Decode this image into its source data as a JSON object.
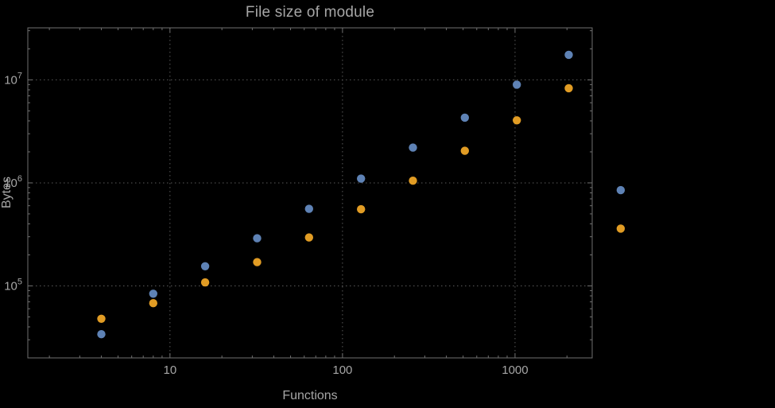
{
  "page": {
    "background": "#000000"
  },
  "chart_data": {
    "type": "scatter",
    "title": "File size of module",
    "xlabel": "Functions",
    "ylabel": "Bytes",
    "x_scale": "log",
    "y_scale": "log",
    "xlim": [
      1.5,
      2800
    ],
    "ylim": [
      20000,
      32000000
    ],
    "legend": "none",
    "grid": {
      "style": "dotted",
      "x_values": [
        10,
        100,
        1000
      ],
      "y_values": [
        100000,
        1000000,
        10000000
      ]
    },
    "x_ticks": [
      {
        "value": 10,
        "label": "10"
      },
      {
        "value": 100,
        "label": "100"
      },
      {
        "value": 1000,
        "label": "1000"
      }
    ],
    "y_ticks": [
      {
        "value": 100000,
        "base": "10",
        "exp": "5"
      },
      {
        "value": 1000000,
        "base": "10",
        "exp": "6"
      },
      {
        "value": 10000000,
        "base": "10",
        "exp": "7"
      }
    ],
    "colors": {
      "frame": "#6f6f6f",
      "grid": "#5a5a5a",
      "text": "#a6a6a6",
      "series_blue": "#5e82b5",
      "series_orange": "#e19c24"
    },
    "series": [
      {
        "name": "series-blue",
        "color": "#5e82b5",
        "x": [
          4,
          8,
          16,
          32,
          64,
          128,
          256,
          512,
          1024,
          2048,
          4096
        ],
        "y": [
          34000,
          84000,
          155000,
          290000,
          560000,
          1100000,
          2200000,
          4300000,
          9000000,
          17500000,
          850000
        ]
      },
      {
        "name": "series-orange",
        "color": "#e19c24",
        "x": [
          4,
          8,
          16,
          32,
          64,
          128,
          256,
          512,
          1024,
          2048,
          4096
        ],
        "y": [
          48000,
          68000,
          108000,
          170000,
          295000,
          555000,
          1050000,
          2050000,
          4050000,
          8300000,
          360000
        ]
      }
    ]
  }
}
